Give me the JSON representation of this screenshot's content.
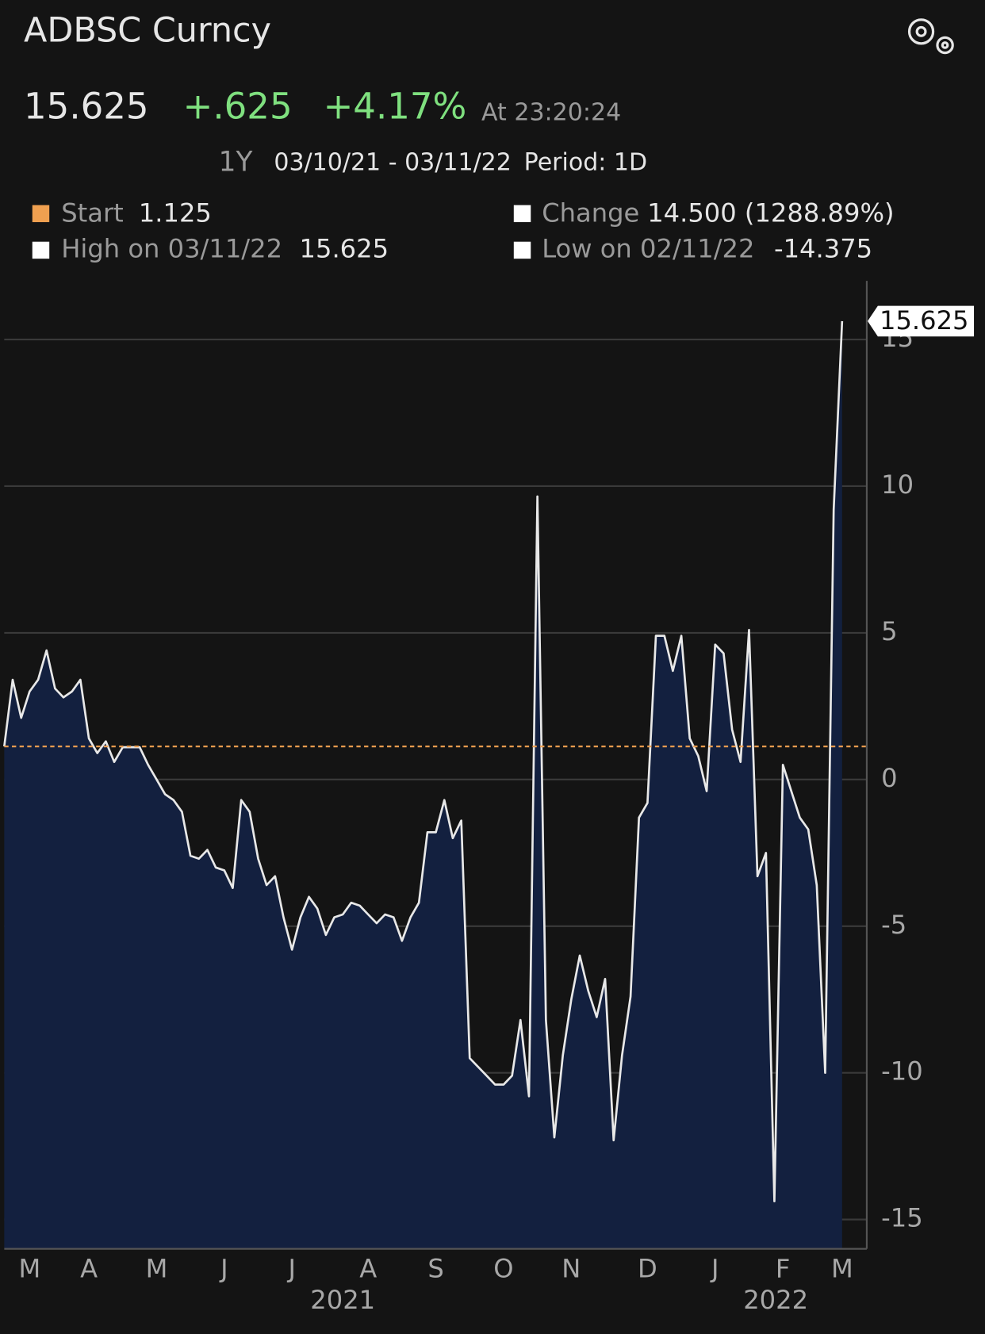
{
  "header": {
    "title": "ADBSC Curncy",
    "price": "15.625",
    "change": "+.625",
    "change_pct": "+4.17%",
    "time": "At 23:20:24",
    "range": "1Y",
    "dates": "03/10/21 - 03/11/22",
    "period": "Period: 1D"
  },
  "stats": {
    "start_label": "Start",
    "change_label": "Change",
    "change_value": "14.500 (1288.89%)",
    "high_label": "High on 03/11/22",
    "low_label": "Low on 02/11/22"
  },
  "chart_data": {
    "type": "area",
    "categories": [
      null,
      null,
      null,
      "M",
      null,
      null,
      null,
      null,
      null,
      null,
      "A",
      null,
      null,
      null,
      null,
      null,
      null,
      null,
      "M",
      null,
      null,
      null,
      null,
      null,
      null,
      null,
      "J",
      null,
      null,
      null,
      null,
      null,
      null,
      null,
      "J",
      null,
      null,
      null,
      null,
      null,
      null,
      null,
      null,
      "A",
      null,
      null,
      null,
      null,
      null,
      null,
      null,
      "S",
      null,
      null,
      null,
      null,
      null,
      null,
      null,
      "O",
      null,
      null,
      null,
      null,
      null,
      null,
      null,
      "N",
      null,
      null,
      null,
      null,
      null,
      null,
      null,
      null,
      "D",
      null,
      null,
      null,
      null,
      null,
      null,
      null,
      "J",
      null,
      null,
      null,
      null,
      null,
      null,
      null,
      "F",
      null,
      null,
      null,
      null,
      null,
      null,
      "M"
    ],
    "year_labels": [
      "2021",
      "2022"
    ],
    "series": [
      {
        "name": "ADBSC Curncy",
        "color": "#e8e8e8",
        "area_color": "#13203f",
        "values": [
          1.125,
          3.4,
          2.1,
          3.0,
          3.4,
          4.4,
          3.1,
          2.8,
          3.0,
          3.4,
          1.4,
          0.9,
          1.3,
          0.6,
          1.1,
          1.1,
          1.1,
          0.5,
          0,
          -0.5,
          -0.7,
          -1.1,
          -2.6,
          -2.7,
          -2.4,
          -3.0,
          -3.1,
          -3.7,
          -0.7,
          -1.1,
          -2.7,
          -3.6,
          -3.3,
          -4.7,
          -5.8,
          -4.7,
          -4.0,
          -4.4,
          -5.3,
          -4.7,
          -4.6,
          -4.2,
          -4.3,
          -4.6,
          -4.9,
          -4.6,
          -4.7,
          -5.5,
          -4.7,
          -4.2,
          -1.8,
          -1.8,
          -0.7,
          -2.0,
          -1.4,
          -9.5,
          -9.8,
          -10.1,
          -10.4,
          -10.4,
          -10.1,
          -8.2,
          -10.8,
          9.65,
          -8.2,
          -12.2,
          -9.4,
          -7.5,
          -6.0,
          -7.2,
          -8.1,
          -6.8,
          -12.3,
          -9.4,
          -7.4,
          -1.3,
          -0.8,
          4.9,
          4.9,
          3.7,
          4.9,
          1.4,
          0.8,
          -0.4,
          4.6,
          4.3,
          1.7,
          0.6,
          5.1,
          -3.3,
          -2.5,
          -14.375,
          0.5,
          -0.4,
          -1.3,
          -1.7,
          -3.6,
          -10.0,
          9.2,
          15.625
        ]
      }
    ],
    "start_line": 1.125,
    "start_line_color": "#f0a050",
    "ylim": [
      -16,
      17
    ],
    "yticks": [
      -15,
      -10,
      -5,
      0,
      5,
      10,
      15
    ],
    "grid": true
  }
}
